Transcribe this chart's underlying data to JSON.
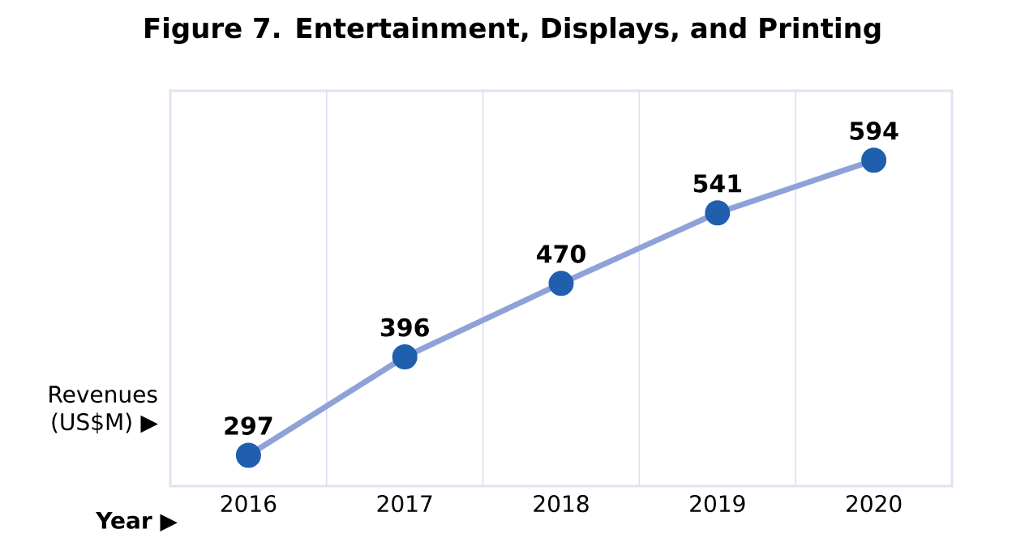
{
  "chart_data": {
    "type": "line",
    "title": "Figure 7. Entertainment, Displays, and Printing",
    "xlabel": "Year ▶",
    "ylabel": "Revenues (US$M) ▶",
    "categories": [
      "2016",
      "2017",
      "2018",
      "2019",
      "2020"
    ],
    "series": [
      {
        "color": "#1f5fae",
        "values": [
          297,
          396,
          470,
          541,
          594
        ]
      }
    ],
    "ylim": [
      266,
      664
    ],
    "tick_labels": "x",
    "grid": "x",
    "marker": "circle",
    "line_style": "solid",
    "data_labels": true
  }
}
